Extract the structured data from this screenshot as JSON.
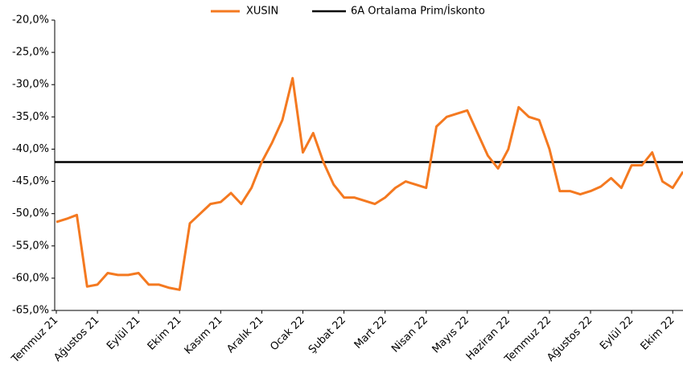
{
  "chart_data": {
    "type": "line",
    "categories": [
      "Temmuz 21",
      null,
      null,
      null,
      "Ağustos 21",
      null,
      null,
      null,
      "Eylül 21",
      null,
      null,
      null,
      "Ekim 21",
      null,
      null,
      null,
      "Kasım 21",
      null,
      null,
      null,
      "Aralık 21",
      null,
      null,
      null,
      "Ocak 22",
      null,
      null,
      null,
      "Şubat 22",
      null,
      null,
      null,
      "Mart 22",
      null,
      null,
      null,
      "Nisan 22",
      null,
      null,
      null,
      "Mayıs 22",
      null,
      null,
      null,
      "Haziran 22",
      null,
      null,
      null,
      "Temmuz 22",
      null,
      null,
      null,
      "Ağustos 22",
      null,
      null,
      null,
      "Eylül 22",
      null,
      null,
      null,
      "Ekim 22",
      null
    ],
    "series": [
      {
        "name": "XUSIN",
        "color": "#f47920",
        "values": [
          -51.3,
          -50.8,
          -50.2,
          -61.3,
          -61,
          -59.2,
          -59.5,
          -59.5,
          -59.2,
          -61,
          -61,
          -61.5,
          -61.8,
          -51.5,
          -50,
          -48.5,
          -48.2,
          -46.8,
          -48.5,
          -46,
          -42,
          -39,
          -35.5,
          -29,
          -40.5,
          -37.5,
          -42,
          -45.5,
          -47.5,
          -47.5,
          -48,
          -48.5,
          -47.5,
          -46,
          -45,
          -45.5,
          -46,
          -36.5,
          -35,
          -34.5,
          -34,
          -37.5,
          -41,
          -43,
          -40,
          -33.5,
          -35,
          -35.5,
          -40,
          -46.5,
          -46.5,
          -47,
          -46.5,
          -45.8,
          -44.5,
          -46,
          -42.5,
          -42.5,
          -40.5,
          -45,
          -46,
          -43.5
        ]
      }
    ],
    "reference": {
      "name": "6A Ortalama Prim/İskonto",
      "value": -42,
      "color": "#000000"
    },
    "ylim": [
      -65,
      -20
    ],
    "yticks": [
      {
        "value": -20,
        "label": "-20,0%"
      },
      {
        "value": -25,
        "label": "-25,0%"
      },
      {
        "value": -30,
        "label": "-30,0%"
      },
      {
        "value": -35,
        "label": "-35,0%"
      },
      {
        "value": -40,
        "label": "-40,0%"
      },
      {
        "value": -45,
        "label": "-45,0%"
      },
      {
        "value": -50,
        "label": "-50,0%"
      },
      {
        "value": -55,
        "label": "-55,0%"
      },
      {
        "value": -60,
        "label": "-60,0%"
      },
      {
        "value": -65,
        "label": "-65,0%"
      }
    ]
  }
}
